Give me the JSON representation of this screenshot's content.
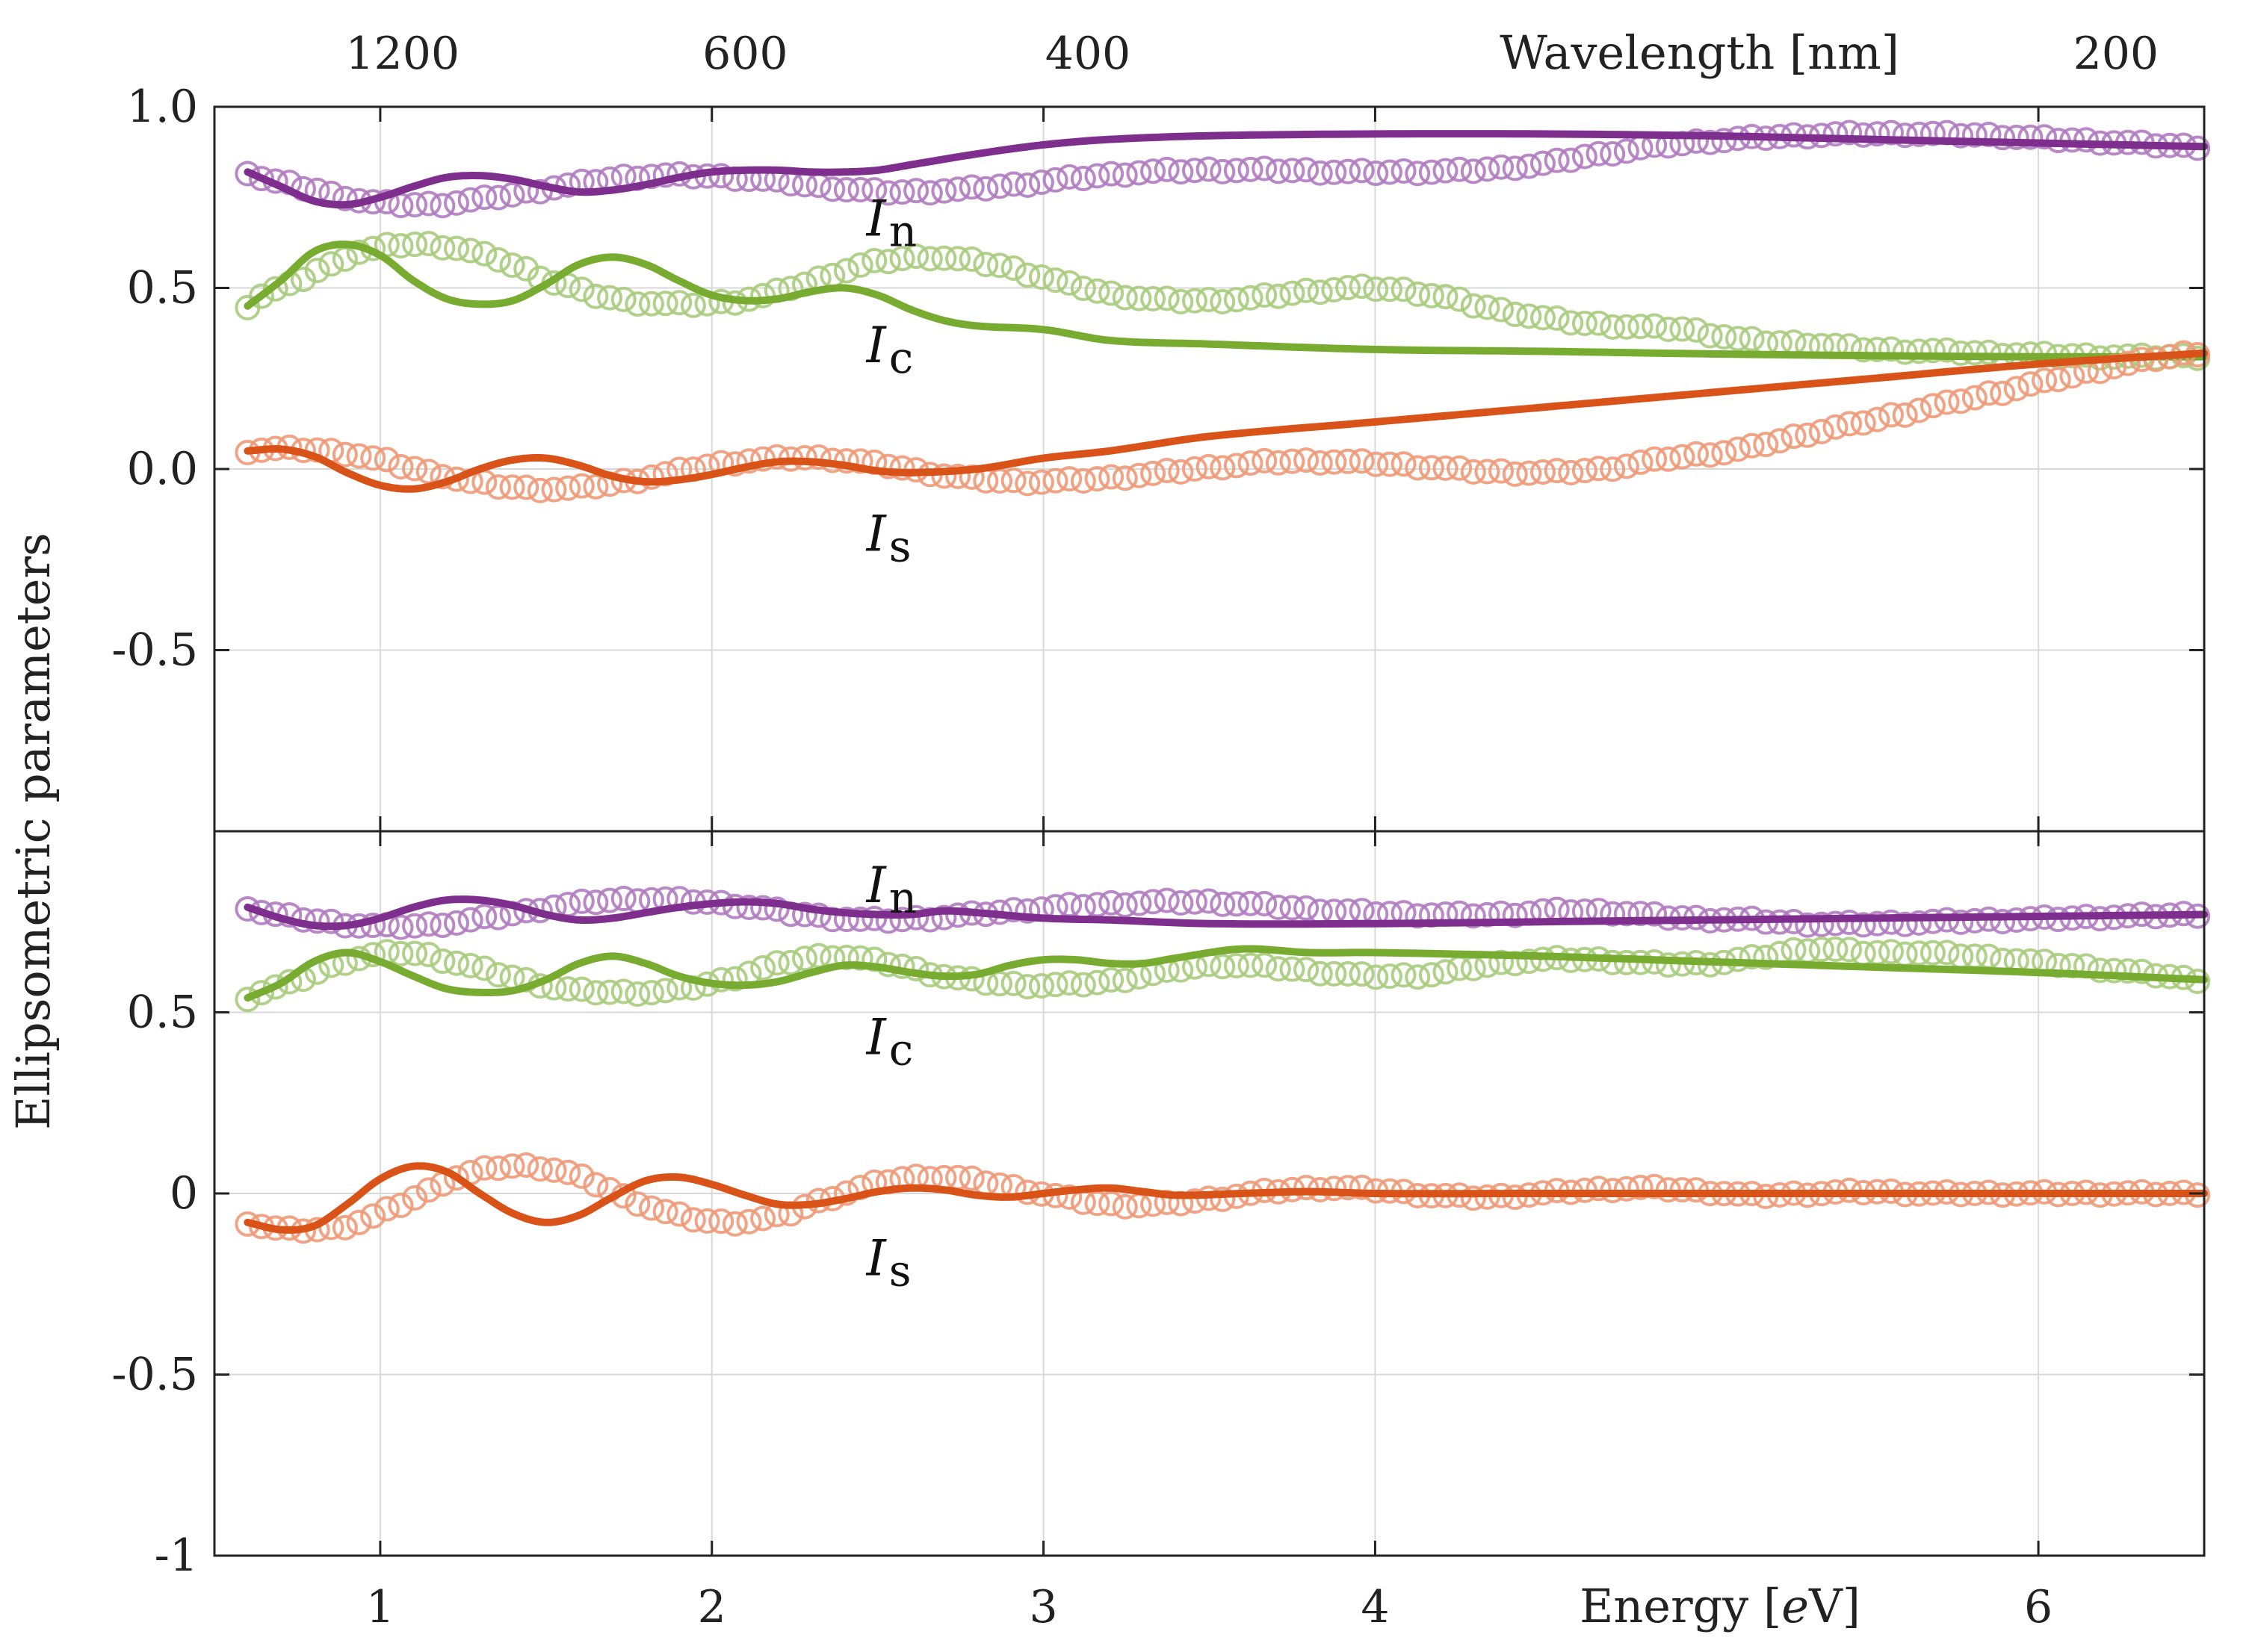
{
  "chart_data": {
    "type": "line",
    "ylabel": "Ellipsometric parameters",
    "x_axis": {
      "label_prefix": "Energy [",
      "label_var": "e",
      "label_suffix": "V]",
      "range": [
        0.5,
        6.5
      ],
      "ticks": [
        1,
        2,
        3,
        4,
        6
      ],
      "tick_labels": [
        "1",
        "2",
        "3",
        "4",
        "6"
      ]
    },
    "top_axis": {
      "label": "Wavelength [nm]",
      "ticks_energy": [
        1.0333,
        2.0667,
        3.1,
        6.2
      ],
      "tick_labels": [
        "1200",
        "600",
        "400",
        "200"
      ]
    },
    "grid": true,
    "colors": {
      "I_n": "#7e2f8e",
      "I_c": "#77ac30",
      "I_s": "#d95319",
      "I_n_marker": "#b07cc0",
      "I_c_marker": "#a8cc7e",
      "I_s_marker": "#ee9a78"
    },
    "panels": [
      {
        "ylim": [
          -1,
          1
        ],
        "yticks": [
          -0.5,
          0,
          0.5,
          1
        ],
        "ytick_labels": [
          "-0.5",
          "0.0",
          "0.5",
          "1.0"
        ],
        "series": [
          {
            "name": "I_n",
            "label_main": "I",
            "label_sub": "n",
            "label_pos": [
              2.5,
              0.69
            ],
            "x": [
              0.6,
              0.7,
              0.8,
              0.9,
              1.0,
              1.1,
              1.2,
              1.3,
              1.4,
              1.5,
              1.6,
              1.7,
              1.8,
              1.9,
              2.0,
              2.1,
              2.2,
              2.3,
              2.4,
              2.5,
              2.6,
              2.8,
              3.0,
              3.2,
              3.5,
              4.0,
              4.5,
              5.0,
              5.5,
              6.0,
              6.5
            ],
            "y": [
              0.82,
              0.78,
              0.74,
              0.73,
              0.75,
              0.78,
              0.805,
              0.81,
              0.8,
              0.78,
              0.765,
              0.77,
              0.785,
              0.805,
              0.82,
              0.825,
              0.825,
              0.82,
              0.82,
              0.825,
              0.84,
              0.87,
              0.895,
              0.91,
              0.92,
              0.925,
              0.925,
              0.92,
              0.91,
              0.9,
              0.89
            ]
          },
          {
            "name": "I_c",
            "label_main": "I",
            "label_sub": "c",
            "label_pos": [
              2.5,
              0.34
            ],
            "x": [
              0.6,
              0.7,
              0.8,
              0.9,
              1.0,
              1.1,
              1.2,
              1.3,
              1.4,
              1.5,
              1.6,
              1.7,
              1.8,
              1.9,
              2.0,
              2.1,
              2.2,
              2.3,
              2.4,
              2.5,
              2.6,
              2.7,
              2.8,
              3.0,
              3.2,
              3.5,
              4.0,
              4.5,
              5.0,
              5.5,
              6.0,
              6.5
            ],
            "y": [
              0.45,
              0.52,
              0.6,
              0.62,
              0.59,
              0.52,
              0.47,
              0.455,
              0.465,
              0.51,
              0.565,
              0.585,
              0.565,
              0.52,
              0.48,
              0.465,
              0.47,
              0.49,
              0.5,
              0.48,
              0.44,
              0.41,
              0.395,
              0.385,
              0.355,
              0.345,
              0.33,
              0.325,
              0.318,
              0.313,
              0.31,
              0.31
            ]
          },
          {
            "name": "I_s",
            "label_main": "I",
            "label_sub": "s",
            "label_pos": [
              2.5,
              -0.18
            ],
            "x": [
              0.6,
              0.7,
              0.8,
              0.9,
              1.0,
              1.1,
              1.2,
              1.3,
              1.4,
              1.5,
              1.6,
              1.7,
              1.8,
              1.9,
              2.0,
              2.1,
              2.2,
              2.3,
              2.4,
              2.5,
              2.6,
              2.8,
              3.0,
              3.2,
              3.5,
              4.0,
              4.5,
              5.0,
              5.5,
              6.0,
              6.5
            ],
            "y": [
              0.05,
              0.055,
              0.035,
              -0.01,
              -0.045,
              -0.055,
              -0.035,
              0.0,
              0.025,
              0.03,
              0.01,
              -0.02,
              -0.035,
              -0.03,
              -0.015,
              0.005,
              0.02,
              0.02,
              0.01,
              -0.005,
              -0.01,
              0.0,
              0.03,
              0.05,
              0.09,
              0.13,
              0.17,
              0.21,
              0.25,
              0.29,
              0.32
            ]
          }
        ]
      },
      {
        "ylim": [
          -1,
          1
        ],
        "yticks": [
          -1,
          -0.5,
          0,
          0.5
        ],
        "ytick_labels": [
          "-1",
          "-0.5",
          "0",
          "0.5"
        ],
        "series": [
          {
            "name": "I_n",
            "label_main": "I",
            "label_sub": "n",
            "label_pos": [
              2.5,
              0.85
            ],
            "x": [
              0.6,
              0.7,
              0.8,
              0.9,
              1.0,
              1.1,
              1.2,
              1.3,
              1.4,
              1.5,
              1.6,
              1.7,
              1.8,
              1.9,
              2.0,
              2.1,
              2.2,
              2.3,
              2.4,
              2.5,
              2.6,
              2.7,
              2.8,
              3.0,
              3.2,
              3.5,
              4.0,
              4.5,
              5.0,
              5.5,
              6.0,
              6.5
            ],
            "y": [
              0.79,
              0.76,
              0.74,
              0.74,
              0.76,
              0.79,
              0.81,
              0.81,
              0.795,
              0.77,
              0.755,
              0.76,
              0.775,
              0.79,
              0.8,
              0.805,
              0.8,
              0.785,
              0.775,
              0.77,
              0.77,
              0.78,
              0.775,
              0.76,
              0.755,
              0.745,
              0.745,
              0.75,
              0.755,
              0.76,
              0.765,
              0.77
            ]
          },
          {
            "name": "I_c",
            "label_main": "I",
            "label_sub": "c",
            "label_pos": [
              2.5,
              0.43
            ],
            "x": [
              0.6,
              0.7,
              0.8,
              0.9,
              1.0,
              1.1,
              1.2,
              1.3,
              1.4,
              1.5,
              1.6,
              1.7,
              1.8,
              1.9,
              2.0,
              2.1,
              2.2,
              2.3,
              2.4,
              2.5,
              2.6,
              2.7,
              2.8,
              2.9,
              3.0,
              3.1,
              3.2,
              3.3,
              3.4,
              3.6,
              3.8,
              4.0,
              4.5,
              5.0,
              5.5,
              6.0,
              6.5
            ],
            "y": [
              0.54,
              0.58,
              0.64,
              0.665,
              0.64,
              0.6,
              0.565,
              0.555,
              0.56,
              0.59,
              0.635,
              0.655,
              0.635,
              0.6,
              0.58,
              0.575,
              0.585,
              0.61,
              0.63,
              0.625,
              0.61,
              0.6,
              0.605,
              0.63,
              0.645,
              0.645,
              0.635,
              0.635,
              0.65,
              0.675,
              0.665,
              0.665,
              0.655,
              0.64,
              0.625,
              0.61,
              0.59
            ]
          },
          {
            "name": "I_s",
            "label_main": "I",
            "label_sub": "s",
            "label_pos": [
              2.5,
              -0.18
            ],
            "x": [
              0.6,
              0.7,
              0.8,
              0.9,
              1.0,
              1.1,
              1.2,
              1.3,
              1.4,
              1.5,
              1.6,
              1.7,
              1.8,
              1.9,
              2.0,
              2.1,
              2.2,
              2.3,
              2.4,
              2.5,
              2.6,
              2.7,
              2.8,
              2.9,
              3.0,
              3.1,
              3.2,
              3.3,
              3.4,
              3.6,
              3.8,
              4.0,
              4.5,
              5.0,
              5.5,
              6.0,
              6.5
            ],
            "y": [
              -0.08,
              -0.1,
              -0.09,
              -0.03,
              0.04,
              0.075,
              0.06,
              0.0,
              -0.055,
              -0.08,
              -0.06,
              -0.01,
              0.035,
              0.045,
              0.025,
              -0.005,
              -0.03,
              -0.03,
              -0.015,
              0.005,
              0.015,
              0.01,
              -0.005,
              -0.01,
              0.0,
              0.01,
              0.015,
              0.005,
              -0.005,
              0.0,
              0.005,
              0.0,
              0.0,
              0.0,
              0.0,
              0.0,
              0.0
            ]
          }
        ]
      }
    ]
  }
}
